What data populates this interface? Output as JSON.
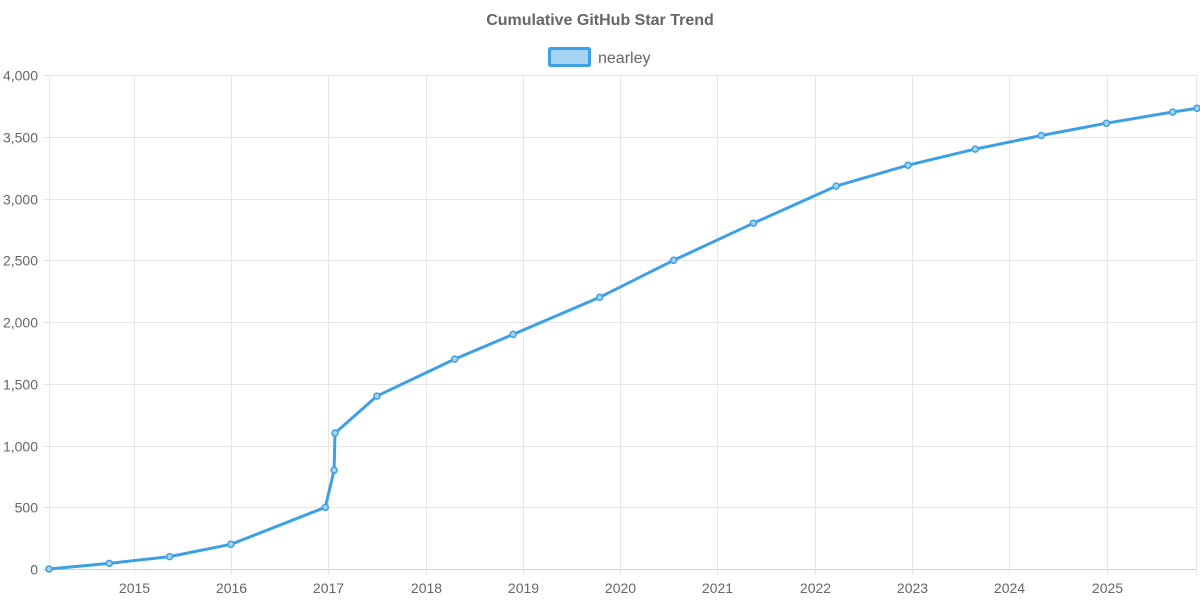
{
  "chart_data": {
    "type": "line",
    "title": "Cumulative GitHub Star Trend",
    "xlabel": "",
    "ylabel": "",
    "grid": true,
    "legend_position": "top-center",
    "x_ticks": [
      "2015",
      "2016",
      "2017",
      "2018",
      "2019",
      "2020",
      "2021",
      "2022",
      "2023",
      "2024",
      "2025"
    ],
    "y_ticks": [
      0,
      500,
      1000,
      1500,
      2000,
      2500,
      3000,
      3500,
      4000
    ],
    "y_tick_labels": [
      "0",
      "500",
      "1,000",
      "1,500",
      "2,000",
      "2,500",
      "3,000",
      "3,500",
      "4,000"
    ],
    "ylim": [
      0,
      4000
    ],
    "xlim": [
      2014.13,
      2025.93
    ],
    "series": [
      {
        "name": "nearley",
        "color": "#3ea0e4",
        "fill_color": "#a5d3f4",
        "x": [
          2014.13,
          2014.75,
          2015.37,
          2016.0,
          2016.97,
          2017.06,
          2017.07,
          2017.5,
          2018.3,
          2018.9,
          2019.79,
          2020.55,
          2021.37,
          2022.22,
          2022.96,
          2023.65,
          2024.33,
          2025.0,
          2025.68,
          2025.93
        ],
        "values": [
          0,
          45,
          100,
          200,
          500,
          800,
          1100,
          1400,
          1700,
          1900,
          2200,
          2500,
          2800,
          3100,
          3270,
          3400,
          3510,
          3610,
          3700,
          3730
        ]
      }
    ]
  }
}
